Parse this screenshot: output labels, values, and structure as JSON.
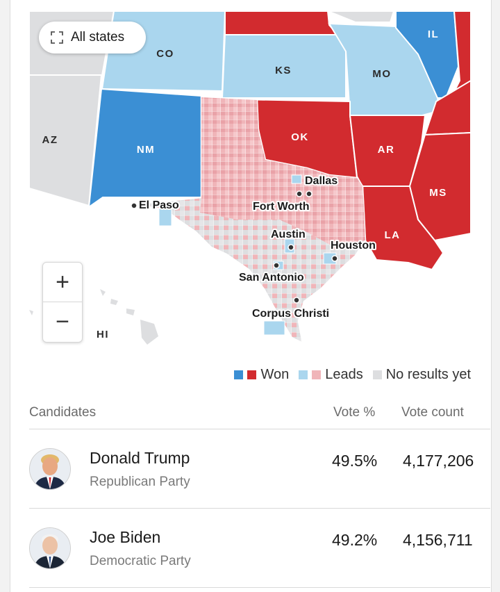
{
  "map": {
    "all_states_label": "All states",
    "state_labels": [
      "CO",
      "KS",
      "MO",
      "IL",
      "AZ",
      "NM",
      "OK",
      "AR",
      "MS",
      "LA",
      "HI"
    ],
    "cities": [
      "Dallas",
      "Fort Worth",
      "El Paso",
      "Austin",
      "Houston",
      "San Antonio",
      "Corpus Christi"
    ],
    "zoom_in_label": "+",
    "zoom_out_label": "−"
  },
  "colors": {
    "dem_won": "#3b8fd4",
    "rep_won": "#d22b2f",
    "dem_leads": "#aad6ee",
    "rep_leads": "#f0b5b9",
    "no_results": "#dddee0"
  },
  "legend": {
    "won": "Won",
    "leads": "Leads",
    "no_results": "No results yet"
  },
  "table": {
    "col_candidates": "Candidates",
    "col_vote_pct": "Vote %",
    "col_vote_count": "Vote count",
    "rows": [
      {
        "name": "Donald Trump",
        "party": "Republican Party",
        "pct": "49.5%",
        "count": "4,177,206"
      },
      {
        "name": "Joe Biden",
        "party": "Democratic Party",
        "pct": "49.2%",
        "count": "4,156,711"
      }
    ]
  }
}
